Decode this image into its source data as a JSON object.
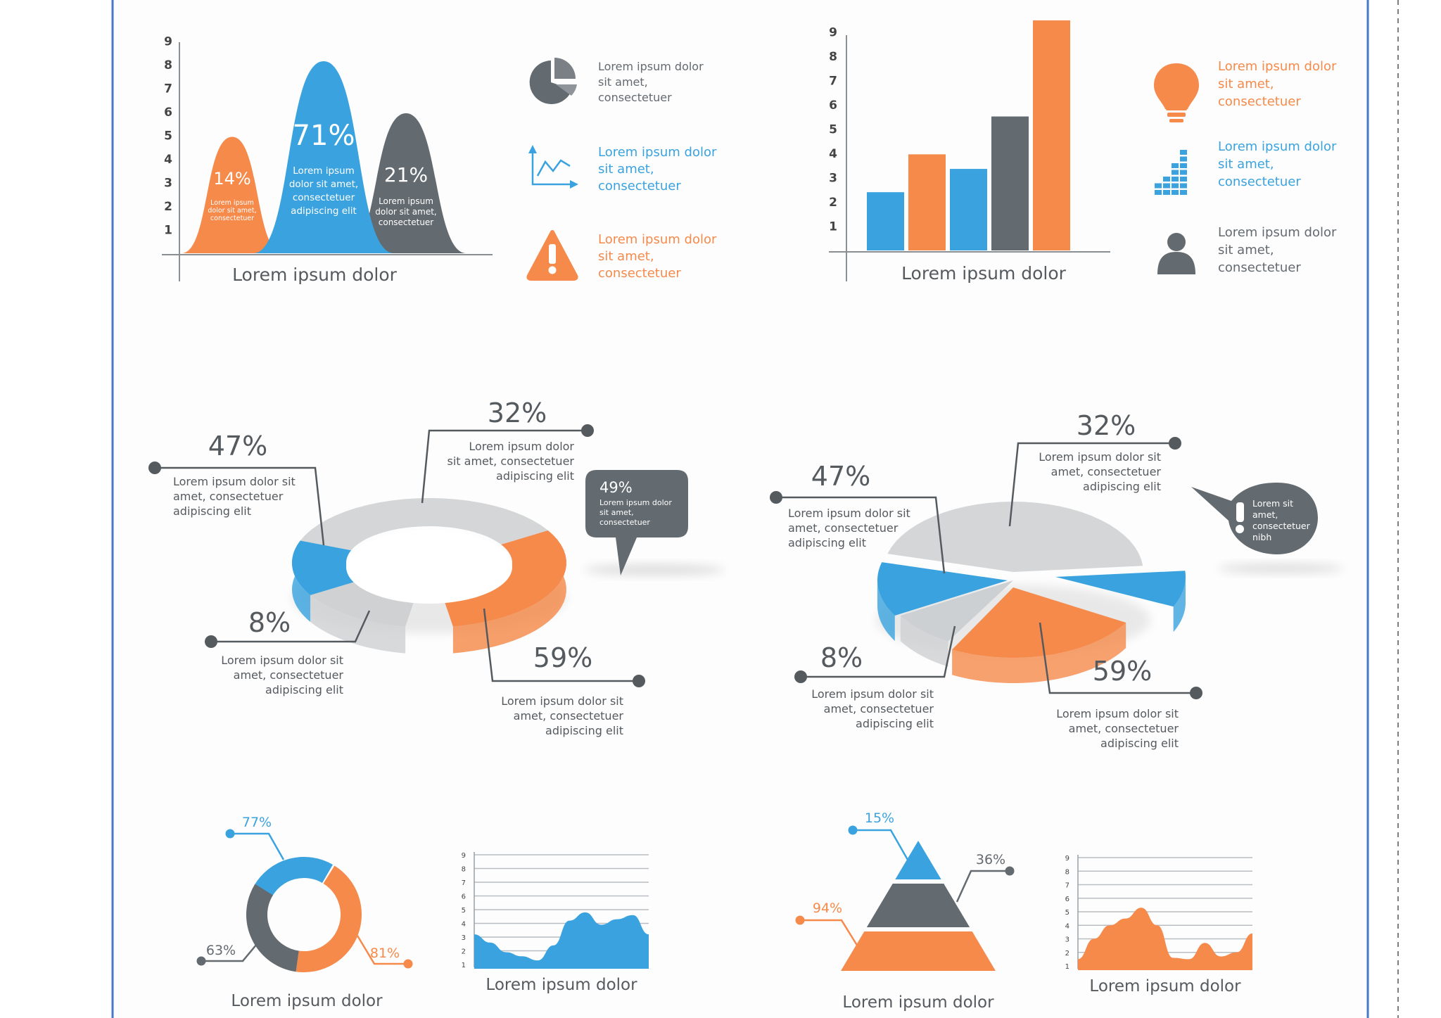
{
  "colors": {
    "orange": "#f58a4b",
    "blue": "#3aa3df",
    "dark": "#636a70",
    "light": "#d4d6d8",
    "text": "#555a5f",
    "axis": "#8a8f94"
  },
  "panel1": {
    "chart_data": {
      "type": "area",
      "yticks": [
        "1",
        "2",
        "3",
        "4",
        "5",
        "6",
        "7",
        "8",
        "9"
      ],
      "ylim": [
        0,
        9
      ],
      "xlabel": "Lorem ipsum dolor",
      "series": [
        {
          "value": 5,
          "percent": "14%",
          "caption": [
            "Lorem ipsum",
            "dolor sit amet,",
            "consectetuer"
          ],
          "color": "orange"
        },
        {
          "value": 8,
          "percent": "71%",
          "caption": [
            "Lorem ipsum",
            "dolor sit amet,",
            "consectetuer",
            "adipiscing elit"
          ],
          "color": "blue"
        },
        {
          "value": 6,
          "percent": "21%",
          "caption": [
            "Lorem ipsum",
            "dolor sit amet,",
            "consectetuer"
          ],
          "color": "dark"
        }
      ]
    },
    "legend": [
      {
        "icon": "pie-chart-icon",
        "lines": [
          "Lorem ipsum dolor",
          "sit amet,",
          "consectetuer"
        ],
        "color": "dark"
      },
      {
        "icon": "line-chart-icon",
        "lines": [
          "Lorem ipsum dolor",
          "sit amet,",
          "consectetuer"
        ],
        "color": "blue"
      },
      {
        "icon": "warning-icon",
        "lines": [
          "Lorem ipsum dolor",
          "sit amet,",
          "consectetuer"
        ],
        "color": "orange"
      }
    ]
  },
  "panel2": {
    "chart_data": {
      "type": "bar",
      "yticks": [
        "1",
        "2",
        "3",
        "4",
        "5",
        "6",
        "7",
        "8",
        "9"
      ],
      "ylim": [
        0,
        9
      ],
      "xlabel": "Lorem ipsum dolor",
      "values": [
        2.0,
        3.3,
        2.8,
        4.6,
        7.9
      ],
      "colors": [
        "blue",
        "orange",
        "blue",
        "dark",
        "orange"
      ]
    },
    "legend": [
      {
        "icon": "lightbulb-icon",
        "lines": [
          "Lorem ipsum dolor",
          "sit amet,",
          "consectetuer"
        ],
        "color": "orange"
      },
      {
        "icon": "bar-growth-icon",
        "lines": [
          "Lorem ipsum dolor",
          "sit amet,",
          "consectetuer"
        ],
        "color": "blue"
      },
      {
        "icon": "person-icon",
        "lines": [
          "Lorem ipsum dolor",
          "sit amet,",
          "consectetuer"
        ],
        "color": "dark"
      }
    ]
  },
  "panel3": {
    "chart_data": {
      "type": "pie",
      "style": "3d-ring",
      "slices": [
        {
          "percent": "47%",
          "color": "blue",
          "caption": [
            "Lorem ipsum dolor sit",
            "amet, consectetuer",
            "adipiscing elit"
          ]
        },
        {
          "percent": "32%",
          "color": "light",
          "caption": [
            "Lorem ipsum dolor",
            "sit amet, consectetuer",
            "adipiscing elit"
          ]
        },
        {
          "percent": "59%",
          "color": "orange",
          "caption": [
            "Lorem ipsum dolor sit",
            "amet, consectetuer",
            "adipiscing elit"
          ]
        },
        {
          "percent": "8%",
          "color": "light",
          "caption": [
            "Lorem ipsum dolor sit",
            "amet, consectetuer",
            "adipiscing elit"
          ]
        }
      ]
    },
    "bubble": {
      "percent": "49%",
      "lines": [
        "Lorem ipsum dolor",
        "sit amet,",
        "consectetuer"
      ]
    }
  },
  "panel4": {
    "chart_data": {
      "type": "pie",
      "style": "3d-exploded",
      "slices": [
        {
          "percent": "47%",
          "color": "blue",
          "caption": [
            "Lorem ipsum dolor sit",
            "amet, consectetuer",
            "adipiscing elit"
          ]
        },
        {
          "percent": "32%",
          "color": "light",
          "caption": [
            "Lorem ipsum dolor sit",
            "amet, consectetuer",
            "adipiscing elit"
          ]
        },
        {
          "percent": "59%",
          "color": "orange",
          "caption": [
            "Lorem ipsum dolor sit",
            "amet, consectetuer",
            "adipiscing elit"
          ]
        },
        {
          "percent": "8%",
          "color": "light",
          "caption": [
            "Lorem ipsum dolor sit",
            "amet, consectetuer",
            "adipiscing elit"
          ]
        }
      ]
    },
    "bubble": {
      "lines": [
        "Lorem sit",
        "amet,",
        "consectetuer",
        "nibh"
      ]
    }
  },
  "panel5": {
    "chart_data": {
      "type": "pie",
      "style": "donut",
      "slices": [
        {
          "percent": "77%",
          "color": "blue"
        },
        {
          "percent": "81%",
          "color": "orange"
        },
        {
          "percent": "63%",
          "color": "dark"
        }
      ]
    },
    "xlabel": "Lorem ipsum dolor"
  },
  "panel6": {
    "chart_data": {
      "type": "area",
      "yticks": [
        "1",
        "2",
        "3",
        "4",
        "5",
        "6",
        "7",
        "8",
        "9"
      ],
      "ylim": [
        0,
        9
      ],
      "xlabel": "Lorem ipsum dolor",
      "values": [
        3.2,
        2.6,
        1.9,
        1.6,
        1.3,
        2.4,
        4.2,
        4.8,
        3.9,
        4.3,
        4.6,
        3.2
      ],
      "color": "blue"
    }
  },
  "panel7": {
    "chart_data": {
      "type": "pyramid",
      "xlabel": "Lorem ipsum dolor",
      "levels": [
        {
          "percent": "15%",
          "color": "blue"
        },
        {
          "percent": "36%",
          "color": "dark"
        },
        {
          "percent": "94%",
          "color": "orange"
        }
      ]
    }
  },
  "panel8": {
    "chart_data": {
      "type": "area",
      "yticks": [
        "1",
        "2",
        "3",
        "4",
        "5",
        "6",
        "7",
        "8",
        "9"
      ],
      "ylim": [
        0,
        9
      ],
      "xlabel": "Lorem ipsum dolor",
      "values": [
        1.5,
        3.0,
        4.0,
        4.5,
        5.3,
        4.0,
        1.6,
        1.5,
        2.7,
        1.7,
        2.0,
        3.4
      ],
      "color": "orange"
    }
  }
}
